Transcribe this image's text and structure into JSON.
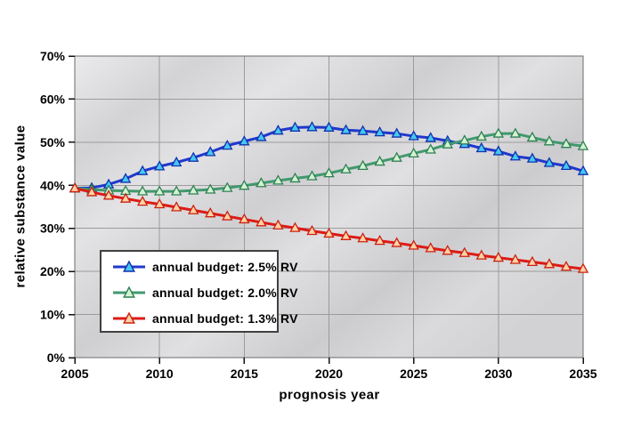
{
  "figure": {
    "background": "#ffffff"
  },
  "chart_data": {
    "type": "line",
    "title": "",
    "xlabel": "prognosis year",
    "ylabel": "relative substance value",
    "xlim": [
      2005,
      2035
    ],
    "ylim": [
      0,
      70
    ],
    "x_ticks": [
      2005,
      2010,
      2015,
      2020,
      2025,
      2030,
      2035
    ],
    "y_ticks": [
      0,
      10,
      20,
      30,
      40,
      50,
      60,
      70
    ],
    "y_tick_suffix": "%",
    "grid": true,
    "legend_position": "inside-lower-left",
    "x": [
      2005,
      2006,
      2007,
      2008,
      2009,
      2010,
      2011,
      2012,
      2013,
      2014,
      2015,
      2016,
      2017,
      2018,
      2019,
      2020,
      2021,
      2022,
      2023,
      2024,
      2025,
      2026,
      2027,
      2028,
      2029,
      2030,
      2031,
      2032,
      2033,
      2034,
      2035
    ],
    "series": [
      {
        "name": "annual budget: 2.5% RV",
        "line_color": "#2038cc",
        "marker": "triangle-up",
        "marker_fill": "#45c8f0",
        "marker_stroke": "#1030b0",
        "values": [
          39.3,
          39.4,
          40.2,
          41.5,
          43.3,
          44.4,
          45.3,
          46.4,
          47.7,
          49.2,
          50.2,
          51.2,
          52.7,
          53.4,
          53.5,
          53.4,
          52.8,
          52.6,
          52.3,
          52.0,
          51.4,
          51.0,
          50.3,
          49.6,
          48.6,
          47.9,
          46.7,
          46.2,
          45.2,
          44.5,
          43.3
        ]
      },
      {
        "name": "annual budget: 2.0% RV",
        "line_color": "#41996e",
        "marker": "triangle-up",
        "marker_fill": "#d4f2d0",
        "marker_stroke": "#2f8055",
        "values": [
          39.3,
          39.0,
          38.8,
          38.7,
          38.6,
          38.6,
          38.6,
          38.8,
          39.0,
          39.4,
          39.9,
          40.5,
          41.1,
          41.6,
          42.1,
          42.8,
          43.7,
          44.5,
          45.5,
          46.4,
          47.4,
          48.3,
          49.5,
          50.4,
          51.3,
          52.0,
          52.0,
          51.1,
          50.2,
          49.6,
          49.1
        ]
      },
      {
        "name": "annual budget: 1.3% RV",
        "line_color": "#dd1a15",
        "marker": "triangle-up",
        "marker_fill": "#ffd2a4",
        "marker_stroke": "#cc2010",
        "values": [
          39.3,
          38.4,
          37.6,
          36.9,
          36.2,
          35.6,
          34.9,
          34.2,
          33.5,
          32.8,
          32.1,
          31.4,
          30.7,
          30.1,
          29.4,
          28.8,
          28.2,
          27.7,
          27.1,
          26.6,
          26.0,
          25.4,
          24.8,
          24.3,
          23.7,
          23.2,
          22.7,
          22.2,
          21.7,
          21.1,
          20.6
        ]
      }
    ],
    "plot_style": {
      "bg_base": "#d6d6d8",
      "grid_color": "#9b9b9b",
      "border_color": "#6b6b6b",
      "tick_color": "#111111",
      "text_color": "#000000"
    }
  }
}
